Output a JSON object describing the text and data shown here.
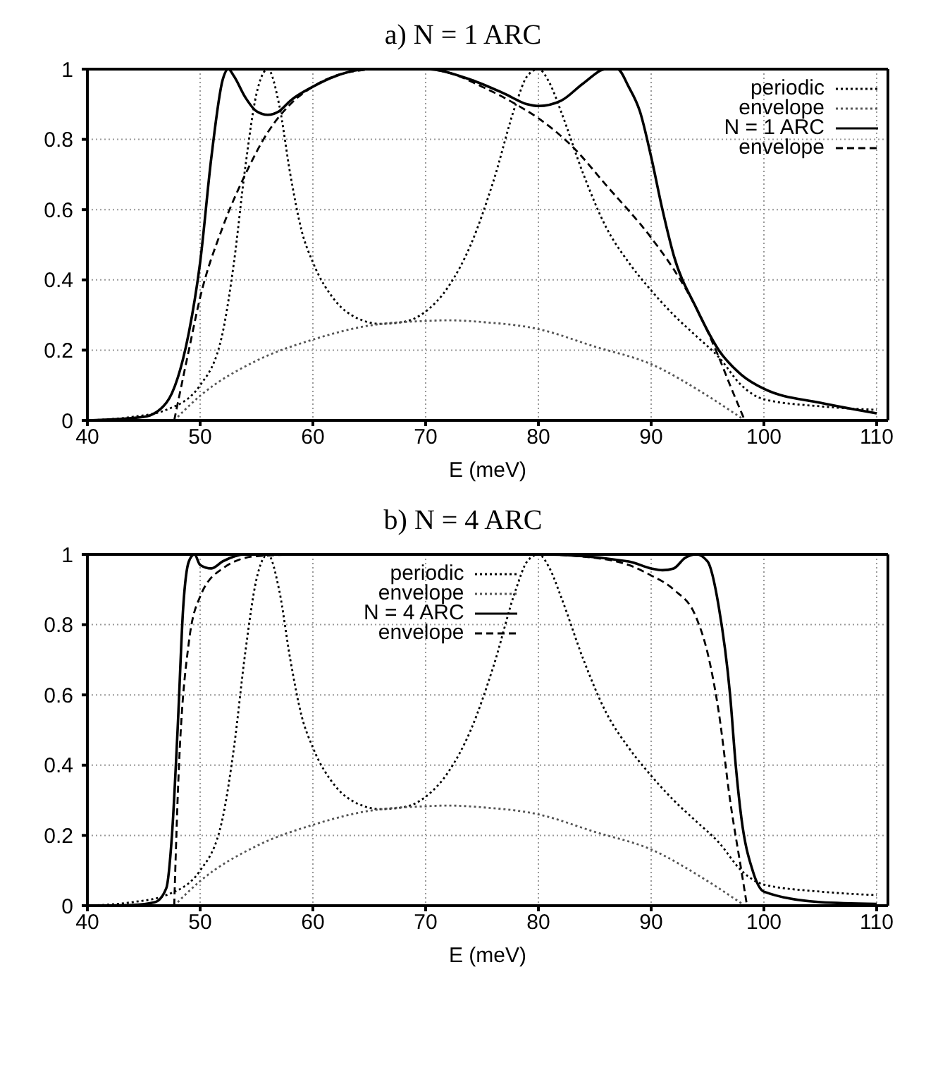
{
  "chart_data": [
    {
      "type": "line",
      "title": "a) N = 1 ARC",
      "xlabel": "E (meV)",
      "xlim": [
        40,
        111
      ],
      "xticks": [
        40,
        50,
        60,
        70,
        80,
        90,
        100,
        110
      ],
      "ylim": [
        0,
        1
      ],
      "yticks": [
        0,
        0.2,
        0.4,
        0.6,
        0.8,
        1
      ],
      "grid": true,
      "legend": "top right",
      "series": [
        {
          "name": "periodic",
          "color": "#000000",
          "line_style": "dotted",
          "x": [
            40,
            44,
            47,
            50,
            52,
            53,
            54,
            55,
            56,
            57,
            58,
            59,
            60,
            62,
            64,
            66,
            68,
            70,
            72,
            74,
            76,
            78,
            79,
            80,
            81,
            82,
            84,
            86,
            88,
            90,
            92,
            94,
            96,
            98,
            100,
            105,
            110
          ],
          "values": [
            0,
            0.01,
            0.03,
            0.1,
            0.25,
            0.45,
            0.72,
            0.93,
            1,
            0.9,
            0.7,
            0.54,
            0.45,
            0.34,
            0.29,
            0.275,
            0.28,
            0.31,
            0.38,
            0.5,
            0.68,
            0.9,
            0.98,
            1,
            0.96,
            0.88,
            0.7,
            0.55,
            0.45,
            0.37,
            0.3,
            0.24,
            0.18,
            0.1,
            0.06,
            0.04,
            0.03
          ]
        },
        {
          "name": "envelope",
          "color": "#555555",
          "line_style": "dotted",
          "x": [
            47.7,
            50,
            55,
            60,
            65,
            70,
            72,
            75,
            80,
            85,
            90,
            95,
            98.3
          ],
          "values": [
            0,
            0.07,
            0.17,
            0.23,
            0.27,
            0.283,
            0.285,
            0.28,
            0.26,
            0.21,
            0.16,
            0.07,
            0
          ]
        },
        {
          "name": "N = 1 ARC",
          "color": "#000000",
          "line_style": "solid",
          "x": [
            40,
            45,
            47,
            48,
            49,
            50,
            51,
            52,
            52.5,
            53,
            54,
            55,
            56,
            57,
            58,
            60,
            62,
            65,
            70,
            74,
            77,
            79,
            80,
            82,
            84,
            86,
            87,
            88,
            89,
            90,
            91,
            92,
            94,
            96,
            98,
            100,
            105,
            110
          ],
          "values": [
            0,
            0.01,
            0.05,
            0.12,
            0.25,
            0.45,
            0.75,
            0.97,
            1,
            0.98,
            0.92,
            0.88,
            0.87,
            0.88,
            0.91,
            0.95,
            0.98,
            1,
            1,
            0.97,
            0.93,
            0.9,
            0.895,
            0.91,
            0.96,
            1,
            1,
            0.95,
            0.88,
            0.75,
            0.6,
            0.47,
            0.32,
            0.2,
            0.13,
            0.09,
            0.05,
            0.02
          ]
        },
        {
          "name": "envelope",
          "color": "#000000",
          "line_style": "dashed",
          "x": [
            47.7,
            49,
            50,
            52,
            54,
            56,
            58,
            60,
            63,
            66,
            70,
            72,
            75,
            78,
            80,
            83,
            86,
            90,
            92,
            94,
            96,
            97,
            98.3
          ],
          "values": [
            0,
            0.2,
            0.35,
            0.55,
            0.7,
            0.82,
            0.9,
            0.95,
            0.99,
            1,
            1,
            0.99,
            0.95,
            0.9,
            0.86,
            0.78,
            0.67,
            0.52,
            0.43,
            0.32,
            0.18,
            0.1,
            0
          ]
        }
      ]
    },
    {
      "type": "line",
      "title": "b) N = 4 ARC",
      "xlabel": "E (meV)",
      "xlim": [
        40,
        111
      ],
      "xticks": [
        40,
        50,
        60,
        70,
        80,
        90,
        100,
        110
      ],
      "ylim": [
        0,
        1
      ],
      "yticks": [
        0,
        0.2,
        0.4,
        0.6,
        0.8,
        1
      ],
      "grid": true,
      "legend": "top",
      "series": [
        {
          "name": "periodic",
          "color": "#000000",
          "line_style": "dotted",
          "x": [
            40,
            44,
            47,
            50,
            52,
            53,
            54,
            55,
            56,
            57,
            58,
            59,
            60,
            62,
            64,
            66,
            68,
            70,
            72,
            74,
            76,
            78,
            79,
            80,
            81,
            82,
            84,
            86,
            88,
            90,
            92,
            94,
            96,
            98,
            100,
            105,
            110
          ],
          "values": [
            0,
            0.01,
            0.03,
            0.1,
            0.25,
            0.45,
            0.72,
            0.93,
            1,
            0.9,
            0.7,
            0.54,
            0.45,
            0.34,
            0.29,
            0.275,
            0.28,
            0.31,
            0.38,
            0.5,
            0.68,
            0.9,
            0.98,
            1,
            0.96,
            0.88,
            0.7,
            0.55,
            0.45,
            0.37,
            0.3,
            0.24,
            0.18,
            0.1,
            0.06,
            0.04,
            0.03
          ]
        },
        {
          "name": "envelope",
          "color": "#555555",
          "line_style": "dotted",
          "x": [
            47.7,
            50,
            55,
            60,
            65,
            70,
            72,
            75,
            80,
            85,
            90,
            95,
            98.3
          ],
          "values": [
            0,
            0.07,
            0.17,
            0.23,
            0.27,
            0.283,
            0.285,
            0.28,
            0.26,
            0.21,
            0.16,
            0.07,
            0
          ]
        },
        {
          "name": "N = 4 ARC",
          "color": "#000000",
          "line_style": "solid",
          "x": [
            40,
            44,
            46,
            47,
            47.5,
            48,
            48.5,
            49,
            49.5,
            50,
            51,
            52,
            54,
            60,
            70,
            80,
            88,
            90,
            91,
            92,
            93,
            94,
            95,
            96,
            97,
            97.5,
            98,
            99,
            100,
            105,
            110
          ],
          "values": [
            0,
            0.002,
            0.01,
            0.05,
            0.2,
            0.5,
            0.85,
            0.98,
            1,
            0.97,
            0.96,
            0.98,
            1,
            1,
            1,
            1,
            0.98,
            0.96,
            0.955,
            0.96,
            0.99,
            1,
            0.98,
            0.85,
            0.6,
            0.4,
            0.25,
            0.1,
            0.04,
            0.01,
            0.005
          ]
        },
        {
          "name": "envelope",
          "color": "#000000",
          "line_style": "dashed",
          "x": [
            47.7,
            48,
            49,
            50,
            52,
            55,
            60,
            70,
            80,
            85,
            88,
            90,
            92,
            94,
            95,
            96,
            97,
            98,
            98.5
          ],
          "values": [
            0,
            0.3,
            0.75,
            0.88,
            0.96,
            0.995,
            1,
            1,
            1,
            0.99,
            0.97,
            0.94,
            0.9,
            0.82,
            0.72,
            0.55,
            0.3,
            0.1,
            0
          ]
        }
      ]
    }
  ]
}
